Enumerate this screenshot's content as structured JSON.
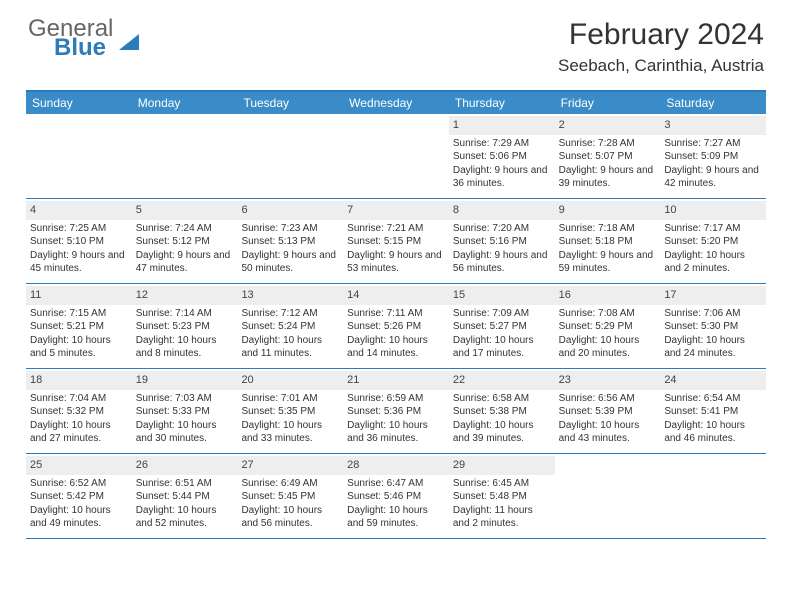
{
  "logo": {
    "general": "General",
    "blue": "Blue"
  },
  "title": "February 2024",
  "location": "Seebach, Carinthia, Austria",
  "weekdays": [
    "Sunday",
    "Monday",
    "Tuesday",
    "Wednesday",
    "Thursday",
    "Friday",
    "Saturday"
  ],
  "colors": {
    "header_bar": "#3a8cc8",
    "border": "#2c7cbb",
    "daynum_bg": "#eeeeee",
    "text": "#333333",
    "logo_gray": "#666666",
    "logo_blue": "#2c7cbb",
    "background": "#ffffff"
  },
  "typography": {
    "title_fontsize": 30,
    "location_fontsize": 17,
    "weekday_fontsize": 12,
    "daynum_fontsize": 11,
    "body_fontsize": 10
  },
  "layout": {
    "columns": 7,
    "rows": 5,
    "calendar_width": 740,
    "day_min_height": 84
  },
  "weeks": [
    [
      {
        "n": "",
        "sunrise": "",
        "sunset": "",
        "daylight": ""
      },
      {
        "n": "",
        "sunrise": "",
        "sunset": "",
        "daylight": ""
      },
      {
        "n": "",
        "sunrise": "",
        "sunset": "",
        "daylight": ""
      },
      {
        "n": "",
        "sunrise": "",
        "sunset": "",
        "daylight": ""
      },
      {
        "n": "1",
        "sunrise": "Sunrise: 7:29 AM",
        "sunset": "Sunset: 5:06 PM",
        "daylight": "Daylight: 9 hours and 36 minutes."
      },
      {
        "n": "2",
        "sunrise": "Sunrise: 7:28 AM",
        "sunset": "Sunset: 5:07 PM",
        "daylight": "Daylight: 9 hours and 39 minutes."
      },
      {
        "n": "3",
        "sunrise": "Sunrise: 7:27 AM",
        "sunset": "Sunset: 5:09 PM",
        "daylight": "Daylight: 9 hours and 42 minutes."
      }
    ],
    [
      {
        "n": "4",
        "sunrise": "Sunrise: 7:25 AM",
        "sunset": "Sunset: 5:10 PM",
        "daylight": "Daylight: 9 hours and 45 minutes."
      },
      {
        "n": "5",
        "sunrise": "Sunrise: 7:24 AM",
        "sunset": "Sunset: 5:12 PM",
        "daylight": "Daylight: 9 hours and 47 minutes."
      },
      {
        "n": "6",
        "sunrise": "Sunrise: 7:23 AM",
        "sunset": "Sunset: 5:13 PM",
        "daylight": "Daylight: 9 hours and 50 minutes."
      },
      {
        "n": "7",
        "sunrise": "Sunrise: 7:21 AM",
        "sunset": "Sunset: 5:15 PM",
        "daylight": "Daylight: 9 hours and 53 minutes."
      },
      {
        "n": "8",
        "sunrise": "Sunrise: 7:20 AM",
        "sunset": "Sunset: 5:16 PM",
        "daylight": "Daylight: 9 hours and 56 minutes."
      },
      {
        "n": "9",
        "sunrise": "Sunrise: 7:18 AM",
        "sunset": "Sunset: 5:18 PM",
        "daylight": "Daylight: 9 hours and 59 minutes."
      },
      {
        "n": "10",
        "sunrise": "Sunrise: 7:17 AM",
        "sunset": "Sunset: 5:20 PM",
        "daylight": "Daylight: 10 hours and 2 minutes."
      }
    ],
    [
      {
        "n": "11",
        "sunrise": "Sunrise: 7:15 AM",
        "sunset": "Sunset: 5:21 PM",
        "daylight": "Daylight: 10 hours and 5 minutes."
      },
      {
        "n": "12",
        "sunrise": "Sunrise: 7:14 AM",
        "sunset": "Sunset: 5:23 PM",
        "daylight": "Daylight: 10 hours and 8 minutes."
      },
      {
        "n": "13",
        "sunrise": "Sunrise: 7:12 AM",
        "sunset": "Sunset: 5:24 PM",
        "daylight": "Daylight: 10 hours and 11 minutes."
      },
      {
        "n": "14",
        "sunrise": "Sunrise: 7:11 AM",
        "sunset": "Sunset: 5:26 PM",
        "daylight": "Daylight: 10 hours and 14 minutes."
      },
      {
        "n": "15",
        "sunrise": "Sunrise: 7:09 AM",
        "sunset": "Sunset: 5:27 PM",
        "daylight": "Daylight: 10 hours and 17 minutes."
      },
      {
        "n": "16",
        "sunrise": "Sunrise: 7:08 AM",
        "sunset": "Sunset: 5:29 PM",
        "daylight": "Daylight: 10 hours and 20 minutes."
      },
      {
        "n": "17",
        "sunrise": "Sunrise: 7:06 AM",
        "sunset": "Sunset: 5:30 PM",
        "daylight": "Daylight: 10 hours and 24 minutes."
      }
    ],
    [
      {
        "n": "18",
        "sunrise": "Sunrise: 7:04 AM",
        "sunset": "Sunset: 5:32 PM",
        "daylight": "Daylight: 10 hours and 27 minutes."
      },
      {
        "n": "19",
        "sunrise": "Sunrise: 7:03 AM",
        "sunset": "Sunset: 5:33 PM",
        "daylight": "Daylight: 10 hours and 30 minutes."
      },
      {
        "n": "20",
        "sunrise": "Sunrise: 7:01 AM",
        "sunset": "Sunset: 5:35 PM",
        "daylight": "Daylight: 10 hours and 33 minutes."
      },
      {
        "n": "21",
        "sunrise": "Sunrise: 6:59 AM",
        "sunset": "Sunset: 5:36 PM",
        "daylight": "Daylight: 10 hours and 36 minutes."
      },
      {
        "n": "22",
        "sunrise": "Sunrise: 6:58 AM",
        "sunset": "Sunset: 5:38 PM",
        "daylight": "Daylight: 10 hours and 39 minutes."
      },
      {
        "n": "23",
        "sunrise": "Sunrise: 6:56 AM",
        "sunset": "Sunset: 5:39 PM",
        "daylight": "Daylight: 10 hours and 43 minutes."
      },
      {
        "n": "24",
        "sunrise": "Sunrise: 6:54 AM",
        "sunset": "Sunset: 5:41 PM",
        "daylight": "Daylight: 10 hours and 46 minutes."
      }
    ],
    [
      {
        "n": "25",
        "sunrise": "Sunrise: 6:52 AM",
        "sunset": "Sunset: 5:42 PM",
        "daylight": "Daylight: 10 hours and 49 minutes."
      },
      {
        "n": "26",
        "sunrise": "Sunrise: 6:51 AM",
        "sunset": "Sunset: 5:44 PM",
        "daylight": "Daylight: 10 hours and 52 minutes."
      },
      {
        "n": "27",
        "sunrise": "Sunrise: 6:49 AM",
        "sunset": "Sunset: 5:45 PM",
        "daylight": "Daylight: 10 hours and 56 minutes."
      },
      {
        "n": "28",
        "sunrise": "Sunrise: 6:47 AM",
        "sunset": "Sunset: 5:46 PM",
        "daylight": "Daylight: 10 hours and 59 minutes."
      },
      {
        "n": "29",
        "sunrise": "Sunrise: 6:45 AM",
        "sunset": "Sunset: 5:48 PM",
        "daylight": "Daylight: 11 hours and 2 minutes."
      },
      {
        "n": "",
        "sunrise": "",
        "sunset": "",
        "daylight": ""
      },
      {
        "n": "",
        "sunrise": "",
        "sunset": "",
        "daylight": ""
      }
    ]
  ]
}
